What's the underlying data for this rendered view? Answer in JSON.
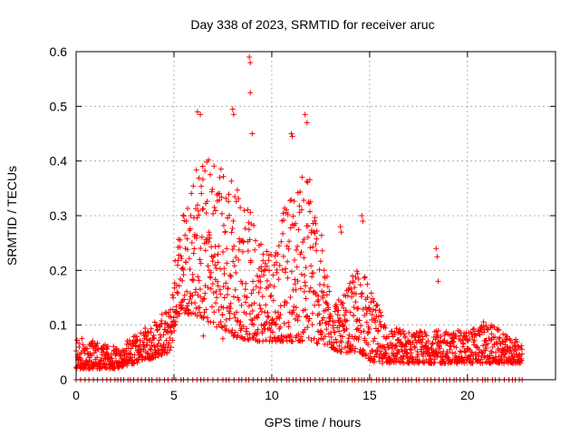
{
  "chart_data": {
    "type": "scatter",
    "title": "Day 338 of 2023, SRMTID for receiver aruc",
    "xlabel": "GPS time / hours",
    "ylabel": "SRMTID / TECUs",
    "xlim": [
      0,
      24.5
    ],
    "ylim": [
      0,
      0.6
    ],
    "x_ticks": [
      0,
      5,
      10,
      15,
      20
    ],
    "x_tick_labels": [
      "0",
      "5",
      "10",
      "15",
      "20"
    ],
    "y_ticks": [
      0,
      0.1,
      0.2,
      0.3,
      0.4,
      0.5,
      0.6
    ],
    "y_tick_labels": [
      "0",
      "0.1",
      "0.2",
      "0.3",
      "0.4",
      "0.5",
      "0.6"
    ],
    "grid": true,
    "marker": "+",
    "series": [
      {
        "name": "SRMTID",
        "color": "#ff0000",
        "profile": {
          "description": "Approximate envelope of the dense scatter; hour -> [typical low, typical high] SRMTID in TECU",
          "hours": [
            0,
            1,
            2,
            3,
            4,
            4.8,
            5.2,
            6,
            7,
            8,
            9,
            10,
            11,
            12,
            12.8,
            13.5,
            14.5,
            15.2,
            16,
            17,
            18,
            19,
            20,
            21,
            22,
            22.8
          ],
          "low": [
            0.02,
            0.02,
            0.02,
            0.03,
            0.04,
            0.05,
            0.12,
            0.12,
            0.1,
            0.08,
            0.07,
            0.07,
            0.07,
            0.07,
            0.06,
            0.05,
            0.05,
            0.03,
            0.03,
            0.03,
            0.03,
            0.03,
            0.03,
            0.03,
            0.03,
            0.03
          ],
          "high": [
            0.08,
            0.07,
            0.06,
            0.08,
            0.11,
            0.13,
            0.28,
            0.4,
            0.42,
            0.38,
            0.3,
            0.25,
            0.35,
            0.4,
            0.2,
            0.14,
            0.22,
            0.15,
            0.1,
            0.09,
            0.09,
            0.09,
            0.09,
            0.11,
            0.08,
            0.07
          ]
        },
        "outliers": [
          {
            "x": 8.85,
            "y": 0.59
          },
          {
            "x": 8.9,
            "y": 0.58
          },
          {
            "x": 8.9,
            "y": 0.525
          },
          {
            "x": 6.2,
            "y": 0.49
          },
          {
            "x": 6.35,
            "y": 0.485
          },
          {
            "x": 8.0,
            "y": 0.495
          },
          {
            "x": 8.05,
            "y": 0.485
          },
          {
            "x": 11.7,
            "y": 0.485
          },
          {
            "x": 11.8,
            "y": 0.47
          },
          {
            "x": 11.0,
            "y": 0.45
          },
          {
            "x": 11.05,
            "y": 0.445
          },
          {
            "x": 9.0,
            "y": 0.45
          },
          {
            "x": 14.6,
            "y": 0.3
          },
          {
            "x": 14.65,
            "y": 0.29
          },
          {
            "x": 18.4,
            "y": 0.24
          },
          {
            "x": 18.45,
            "y": 0.225
          },
          {
            "x": 18.5,
            "y": 0.18
          },
          {
            "x": 13.5,
            "y": 0.28
          },
          {
            "x": 13.55,
            "y": 0.27
          },
          {
            "x": 6.5,
            "y": 0.08
          },
          {
            "x": 7.5,
            "y": 0.075
          }
        ],
        "zero_rows_hours": {
          "description": "Points at exactly 0 TECU appear along the bottom axis throughout the day",
          "range": [
            0,
            22.8
          ]
        }
      }
    ]
  }
}
